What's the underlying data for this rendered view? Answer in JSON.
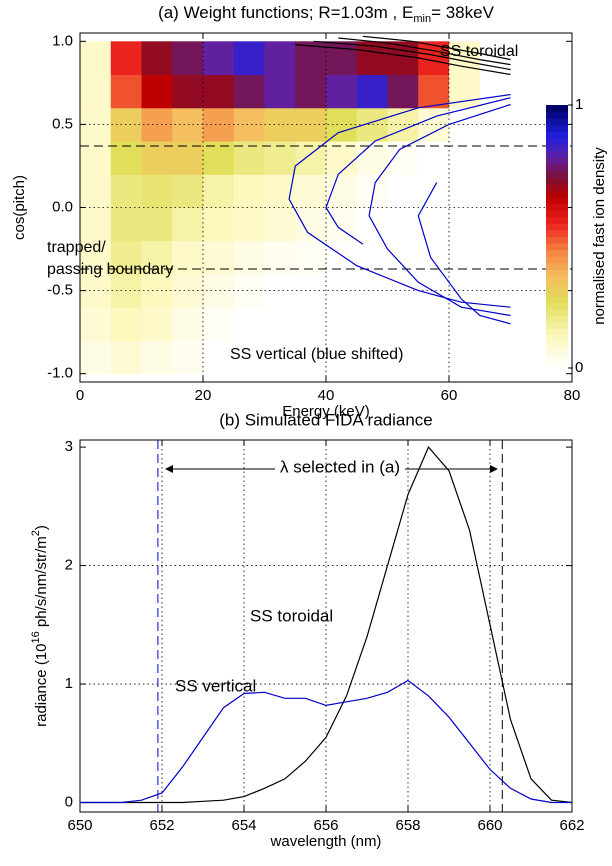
{
  "chart_data": [
    {
      "type": "heatmap",
      "title": [
        "(a) Weight functions; R=1.03m , E",
        "min",
        "= 38keV"
      ],
      "xlabel": "Energy (keV)",
      "ylabel": "cos(pitch)",
      "xlim": [
        0,
        80
      ],
      "xticks": [
        0,
        20,
        40,
        60,
        80
      ],
      "ylim": [
        -1.05,
        1.05
      ],
      "yticks": [
        {
          "value": -1,
          "label": "-1.0"
        },
        {
          "value": -0.5,
          "label": "-0.5"
        },
        {
          "value": 0,
          "label": "0.0"
        },
        {
          "value": 0.5,
          "label": "0.5"
        },
        {
          "value": 1,
          "label": "1.0"
        }
      ],
      "grid": true,
      "x_edges": [
        0,
        5,
        10,
        15,
        20,
        25,
        30,
        35,
        40,
        45,
        50,
        55,
        60,
        65,
        70
      ],
      "y_edges": [
        -1,
        -0.8,
        -0.6,
        -0.4,
        -0.2,
        0,
        0.2,
        0.4,
        0.6,
        0.8,
        1
      ],
      "z": [
        [
          0.05,
          0.08,
          0.05,
          0.03,
          0,
          0,
          0,
          0,
          0,
          0,
          0,
          0,
          0,
          0
        ],
        [
          0.08,
          0.12,
          0.1,
          0.05,
          0.02,
          0,
          0,
          0,
          0,
          0,
          0,
          0,
          0,
          0
        ],
        [
          0.1,
          0.15,
          0.12,
          0.08,
          0.05,
          0.02,
          0,
          0,
          0,
          0,
          0,
          0,
          0,
          0
        ],
        [
          0.1,
          0.18,
          0.15,
          0.1,
          0.08,
          0.05,
          0.03,
          0.02,
          0,
          0,
          0,
          0,
          0,
          0
        ],
        [
          0.1,
          0.2,
          0.2,
          0.15,
          0.12,
          0.1,
          0.08,
          0.05,
          0.03,
          0,
          0,
          0,
          0,
          0
        ],
        [
          0.1,
          0.2,
          0.22,
          0.2,
          0.15,
          0.12,
          0.1,
          0.08,
          0.05,
          0.02,
          0,
          0,
          0,
          0
        ],
        [
          0.1,
          0.25,
          0.3,
          0.3,
          0.25,
          0.2,
          0.18,
          0.15,
          0.1,
          0.05,
          0.02,
          0,
          0,
          0
        ],
        [
          0.1,
          0.3,
          0.4,
          0.35,
          0.4,
          0.35,
          0.3,
          0.3,
          0.25,
          0.2,
          0.15,
          0.08,
          0,
          0
        ],
        [
          0.1,
          0.5,
          0.65,
          0.7,
          0.7,
          0.75,
          0.8,
          0.75,
          0.8,
          0.85,
          0.75,
          0.5,
          0.1,
          0
        ],
        [
          0.1,
          0.55,
          0.7,
          0.75,
          0.8,
          0.85,
          0.8,
          0.75,
          0.75,
          0.7,
          0.7,
          0.55,
          0.1,
          0
        ]
      ],
      "zlim": [
        0,
        1
      ],
      "zticks": [
        0,
        1
      ],
      "zlabel": "normalised fast ion density",
      "hlines": [
        0.37,
        -0.37
      ],
      "contours": [
        {
          "color": "#000000",
          "x": [
            35,
            45,
            55,
            62,
            70
          ],
          "y": [
            0.98,
            0.95,
            0.9,
            0.85,
            0.8
          ]
        },
        {
          "color": "#000000",
          "x": [
            38,
            48,
            57,
            64,
            70
          ],
          "y": [
            1.0,
            0.97,
            0.92,
            0.87,
            0.83
          ]
        },
        {
          "color": "#000000",
          "x": [
            42,
            50,
            58,
            65,
            70
          ],
          "y": [
            1.02,
            0.99,
            0.94,
            0.89,
            0.86
          ]
        },
        {
          "color": "#000000",
          "x": [
            46,
            54,
            60,
            66,
            70
          ],
          "y": [
            1.03,
            1.0,
            0.96,
            0.92,
            0.89
          ]
        },
        {
          "color": "#0000cc",
          "x": [
            70,
            55,
            42,
            35,
            34,
            37,
            45,
            55,
            62,
            70
          ],
          "y": [
            0.68,
            0.6,
            0.45,
            0.25,
            0.05,
            -0.15,
            -0.35,
            -0.5,
            -0.57,
            -0.6
          ]
        },
        {
          "color": "#0000cc",
          "x": [
            70,
            58,
            48,
            42,
            40,
            42,
            46
          ],
          "y": [
            0.66,
            0.55,
            0.4,
            0.2,
            0.0,
            -0.12,
            -0.22
          ]
        },
        {
          "color": "#0000cc",
          "x": [
            70,
            60,
            52,
            48,
            47,
            50,
            55,
            62,
            70
          ],
          "y": [
            0.62,
            0.5,
            0.35,
            0.15,
            -0.05,
            -0.25,
            -0.45,
            -0.6,
            -0.65
          ]
        },
        {
          "color": "#0000cc",
          "x": [
            58,
            55,
            57,
            60,
            62,
            65,
            70
          ],
          "y": [
            0.15,
            -0.05,
            -0.3,
            -0.45,
            -0.55,
            -0.65,
            -0.7
          ]
        }
      ],
      "annotations": [
        "SS toroidal",
        "trapped/",
        "passing boundary",
        "SS vertical (blue shifted)"
      ]
    },
    {
      "type": "line",
      "title": "(b) Simulated FIDA radiance",
      "xlabel": "wavelength (nm)",
      "ylabel": [
        "radiance (10",
        "16",
        " ph/s/nm/str/m",
        "2",
        ")"
      ],
      "xlim": [
        650,
        662
      ],
      "xticks": [
        650,
        652,
        654,
        656,
        658,
        660,
        662
      ],
      "ylim": [
        -0.08,
        3.06
      ],
      "yticks": [
        0,
        1,
        2,
        3
      ],
      "grid": true,
      "x": [
        650,
        650.5,
        651,
        651.5,
        652,
        652.5,
        653,
        653.5,
        654,
        654.5,
        655,
        655.5,
        656,
        656.5,
        657,
        657.5,
        658,
        658.5,
        659,
        659.5,
        660,
        660.5,
        661,
        661.5,
        662
      ],
      "series": [
        {
          "name": "SS toroidal",
          "color": "#000000",
          "values": [
            0,
            0,
            0,
            0,
            0,
            0,
            0.01,
            0.02,
            0.05,
            0.12,
            0.2,
            0.35,
            0.55,
            0.9,
            1.4,
            2.0,
            2.6,
            3.0,
            2.8,
            2.3,
            1.5,
            0.7,
            0.2,
            0.02,
            0
          ]
        },
        {
          "name": "SS vertical",
          "color": "#0000cc",
          "values": [
            0,
            0,
            0,
            0.02,
            0.08,
            0.3,
            0.55,
            0.8,
            0.92,
            0.93,
            0.88,
            0.88,
            0.82,
            0.85,
            0.88,
            0.93,
            1.03,
            0.9,
            0.72,
            0.5,
            0.28,
            0.12,
            0.03,
            0,
            0
          ]
        }
      ],
      "vlines": [
        {
          "value": 651.9,
          "color": "#0000cc"
        },
        {
          "value": 660.3,
          "color": "#000000"
        }
      ],
      "annotations": [
        "λ selected in (a)"
      ]
    }
  ]
}
